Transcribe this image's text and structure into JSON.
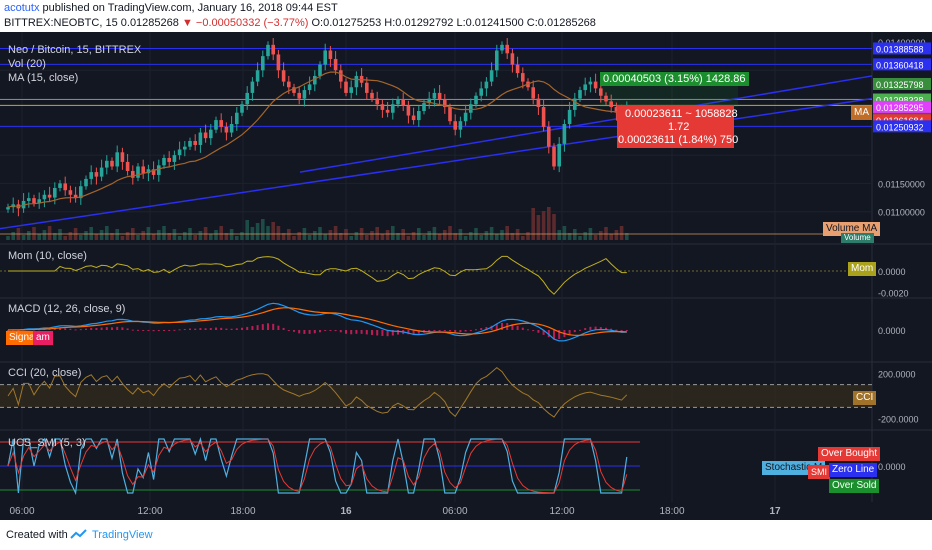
{
  "header": {
    "author": "acotutx",
    "published": "published on TradingView.com, January 16, 2018 09:44 EST",
    "symbol": "BITTREX:NEOBTC, 15",
    "last": "0.01285268",
    "change": "▼ −0.00050332 (−3.77%)",
    "ohlc": "O:0.01275253 H:0.01292792 L:0.01241500 C:0.01285268"
  },
  "legend": {
    "title": "Neo / Bitcoin, 15, BITTREX",
    "vol": "Vol (20)",
    "ma": "MA (15, close)",
    "mom": "Mom (10, close)",
    "macd": "MACD (12, 26, close, 9)",
    "cci": "CCI (20, close)",
    "smi": "UCS_SMI (5, 3)"
  },
  "measure": {
    "gain": "0.00040503 (3.15%) 1428.86",
    "range": "0.00023611 ~ 1058828",
    "ratio": "1.72",
    "loss": "0.00023611 (1.84%) 750"
  },
  "colors": {
    "bg": "#131722",
    "up": "#26a69a",
    "down": "#ef5350",
    "trend": "#2a2ff0",
    "ma": "#a5652a",
    "macd": "#2196f3",
    "signal": "#ff6d00",
    "mom": "#c0b020"
  },
  "chart_data": [
    {
      "type": "candlestick",
      "title": "Neo / Bitcoin, 15, BITTREX",
      "x_ticks": [
        "06:00",
        "12:00",
        "18:00",
        "16",
        "06:00",
        "12:00",
        "18:00",
        "17"
      ],
      "ylim": [
        0.0105,
        0.014
      ],
      "y_ticks": [
        "0.01400000",
        "0.01150000",
        "0.01100000"
      ],
      "price_labels": [
        {
          "value": "0.01388588",
          "label": "0.01388588",
          "color": "#2a2ff0"
        },
        {
          "value": "0.01360418",
          "label": "0.01360418",
          "color": "#2a2ff0"
        },
        {
          "value": "0.01325798",
          "label": "0.01325798",
          "color": "#388e3c"
        },
        {
          "value": "0.01298338",
          "label": "0.01298338",
          "color": "#4caf50"
        },
        {
          "value": "0.01285268",
          "label": "0.01285268",
          "color": "#757575"
        },
        {
          "value": "0.01266",
          "label": "00:34",
          "color": "#4a5a55"
        },
        {
          "value": "0.01285295",
          "label": "0.01285295",
          "color": "#e040fb"
        },
        {
          "value": "0.01261684",
          "label": "0.01261684",
          "color": "#e53935"
        },
        {
          "value": "0.01250932",
          "label": "0.01250932",
          "color": "#2a2ff0"
        }
      ],
      "ma_label": "MA",
      "volume_ma_label": "Volume MA",
      "volume_label": "Volume",
      "closes": [
        0.01108,
        0.01113,
        0.01106,
        0.01119,
        0.01124,
        0.01115,
        0.01122,
        0.0113,
        0.01125,
        0.01142,
        0.0115,
        0.01138,
        0.0113,
        0.01124,
        0.01145,
        0.01158,
        0.0117,
        0.01162,
        0.01178,
        0.0119,
        0.0118,
        0.01205,
        0.01188,
        0.01172,
        0.0116,
        0.0118,
        0.01168,
        0.01175,
        0.01165,
        0.01182,
        0.01195,
        0.01188,
        0.012,
        0.0121,
        0.01215,
        0.01225,
        0.01218,
        0.0124,
        0.0123,
        0.01245,
        0.01262,
        0.0125,
        0.0124,
        0.01255,
        0.01275,
        0.0129,
        0.0131,
        0.0133,
        0.0135,
        0.01375,
        0.01395,
        0.01378,
        0.0135,
        0.0133,
        0.0132,
        0.0131,
        0.013,
        0.01315,
        0.01325,
        0.0134,
        0.0136,
        0.01385,
        0.0137,
        0.0135,
        0.0133,
        0.0131,
        0.0132,
        0.0134,
        0.01328,
        0.0131,
        0.013,
        0.0129,
        0.0128,
        0.01275,
        0.0129,
        0.01298,
        0.01288,
        0.0127,
        0.01262,
        0.01278,
        0.01292,
        0.013,
        0.0131,
        0.01298,
        0.01285,
        0.0126,
        0.01245,
        0.0126,
        0.01275,
        0.0129,
        0.01305,
        0.01318,
        0.0133,
        0.0135,
        0.01385,
        0.01395,
        0.0138,
        0.0136,
        0.01345,
        0.0133,
        0.0132,
        0.013,
        0.01285,
        0.0125,
        0.01215,
        0.0118,
        0.0122,
        0.01255,
        0.0128,
        0.013,
        0.01315,
        0.01325,
        0.0133,
        0.01318,
        0.01305,
        0.01295,
        0.01285,
        0.01275,
        0.01265,
        0.01285
      ]
    },
    {
      "type": "line",
      "title": "Mom (10, close)",
      "label": "Mom",
      "y_ticks": [
        "0.0000",
        "-0.0020"
      ],
      "ylim": [
        -0.0025,
        0.0025
      ]
    },
    {
      "type": "line",
      "title": "MACD (12, 26, close, 9)",
      "label": "Signal",
      "label2": "am",
      "y_ticks": [
        "0.0000"
      ],
      "ylim": [
        -0.0006,
        0.0006
      ]
    },
    {
      "type": "line",
      "title": "CCI (20, close)",
      "label": "CCI",
      "y_ticks": [
        "200.0000",
        "-200.0000"
      ],
      "ylim": [
        -300,
        300
      ],
      "bands": [
        100,
        -100
      ]
    },
    {
      "type": "line",
      "title": "UCS_SMI (5, 3)",
      "y_ticks": [
        "0.0000"
      ],
      "labels": [
        "Over Bought",
        "Stochastic M",
        "SMI",
        "Zero Line",
        "Over Sold"
      ]
    }
  ],
  "footer": {
    "created": "Created with",
    "brand": "TradingView"
  }
}
